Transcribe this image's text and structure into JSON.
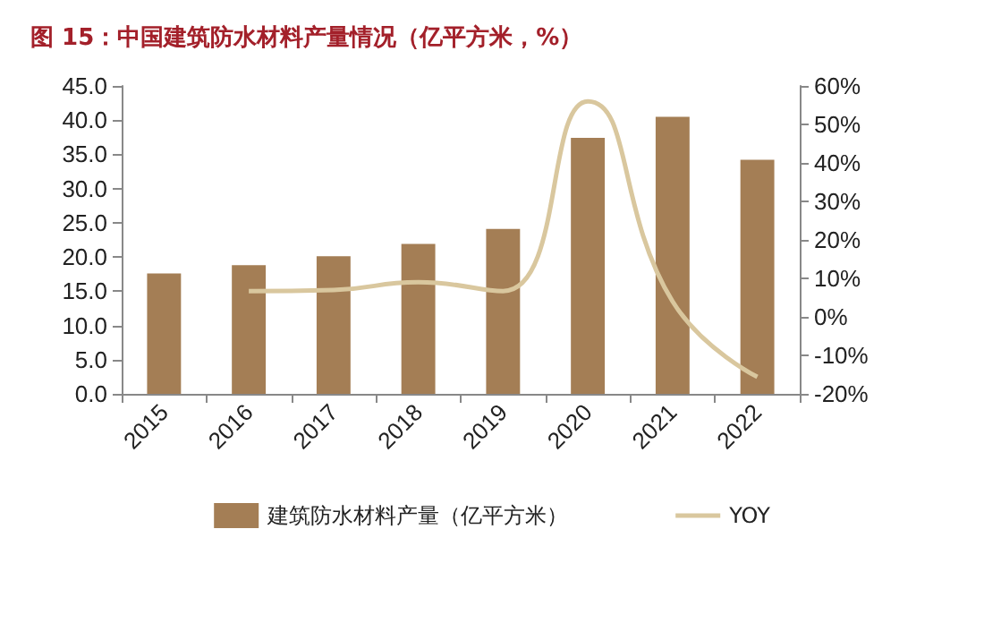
{
  "chart_data": {
    "type": "bar",
    "title": "图 15：中国建筑防水材料产量情况（亿平方米，%）",
    "categories": [
      "2015",
      "2016",
      "2017",
      "2018",
      "2019",
      "2020",
      "2021",
      "2022"
    ],
    "series": [
      {
        "name": "建筑防水材料产量（亿平方米）",
        "color": "#a47e55",
        "values": [
          17.6,
          18.8,
          20.1,
          21.9,
          24.1,
          37.4,
          40.5,
          34.2
        ]
      },
      {
        "name": "YOY",
        "type": "line",
        "axis": "y2",
        "color": "#d9c79e",
        "values": [
          null,
          6.7,
          7,
          9,
          6.7,
          56,
          4,
          -15.6
        ]
      }
    ],
    "ylim": [
      0,
      45
    ],
    "yticks": [
      {
        "value": 0,
        "label": "0.0"
      },
      {
        "value": 5,
        "label": "5.0"
      },
      {
        "value": 10,
        "label": "10.0"
      },
      {
        "value": 15,
        "label": "15.0"
      },
      {
        "value": 20,
        "label": "20.0"
      },
      {
        "value": 25,
        "label": "25.0"
      },
      {
        "value": 30,
        "label": "30.0"
      },
      {
        "value": 35,
        "label": "35.0"
      },
      {
        "value": 40,
        "label": "40.0"
      },
      {
        "value": 45,
        "label": "45.0"
      }
    ],
    "y2lim": [
      -20,
      60
    ],
    "y2ticks": [
      {
        "value": -20,
        "label": "-20%"
      },
      {
        "value": -10,
        "label": "-10%"
      },
      {
        "value": 0,
        "label": "0%"
      },
      {
        "value": 10,
        "label": "10%"
      },
      {
        "value": 20,
        "label": "20%"
      },
      {
        "value": 30,
        "label": "30%"
      },
      {
        "value": 40,
        "label": "40%"
      },
      {
        "value": 50,
        "label": "50%"
      },
      {
        "value": 60,
        "label": "60%"
      }
    ],
    "grid": false,
    "legend": "bottom",
    "marker": "none"
  }
}
